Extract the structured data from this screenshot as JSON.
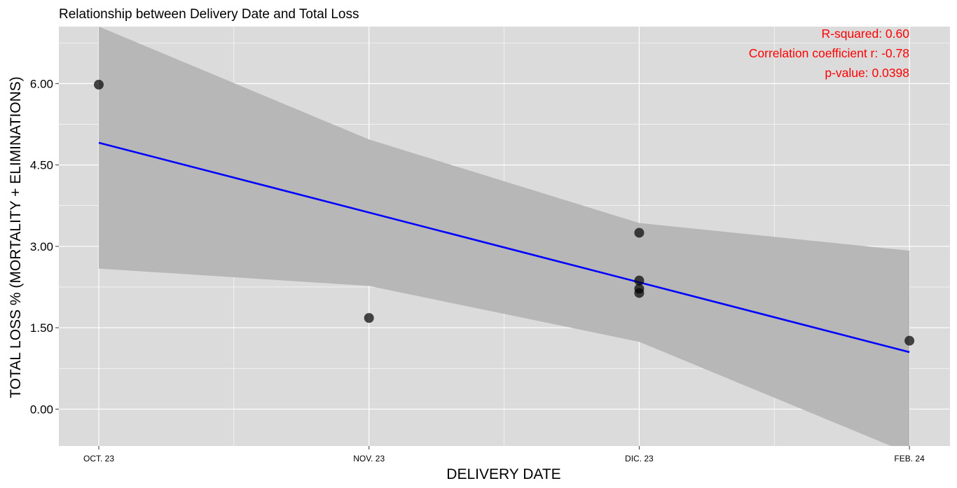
{
  "chart_data": {
    "type": "scatter",
    "title": "Relationship between Delivery Date and Total Loss",
    "xlabel": "DELIVERY DATE",
    "ylabel": "TOTAL LOSS  % (MORTALITY + ELIMINATIONS)",
    "x_categories": [
      "OCT. 23",
      "NOV. 23",
      "DIC. 23",
      "FEB. 24"
    ],
    "x_ticks": [
      0,
      1,
      2,
      3
    ],
    "ylim": [
      -0.68,
      7.05
    ],
    "y_ticks": [
      "0.00",
      "1.50",
      "3.00",
      "4.50",
      "6.00"
    ],
    "points": [
      {
        "x": 0,
        "y": 5.98
      },
      {
        "x": 1,
        "y": 1.68
      },
      {
        "x": 2,
        "y": 3.25
      },
      {
        "x": 2,
        "y": 2.37
      },
      {
        "x": 2,
        "y": 2.22
      },
      {
        "x": 2,
        "y": 2.14
      },
      {
        "x": 3,
        "y": 1.26
      }
    ],
    "regression_line": {
      "x": [
        0,
        3
      ],
      "y": [
        4.91,
        1.05
      ]
    },
    "confidence_band": {
      "x": [
        0,
        1,
        2,
        3
      ],
      "upper": [
        7.05,
        4.97,
        3.43,
        2.92
      ],
      "lower": [
        2.59,
        2.27,
        1.24,
        -0.82
      ]
    },
    "annotations": [
      "R-squared: 0.60",
      "Correlation coefficient r: -0.78",
      "p-value: 0.0398"
    ],
    "grid": true,
    "colors": {
      "panel": "#DBDBDB",
      "grid": "#FFFFFF",
      "band": "#B7B7B7",
      "line": "#0000FF",
      "point": "#000000",
      "annotation": "#FF0000"
    }
  }
}
